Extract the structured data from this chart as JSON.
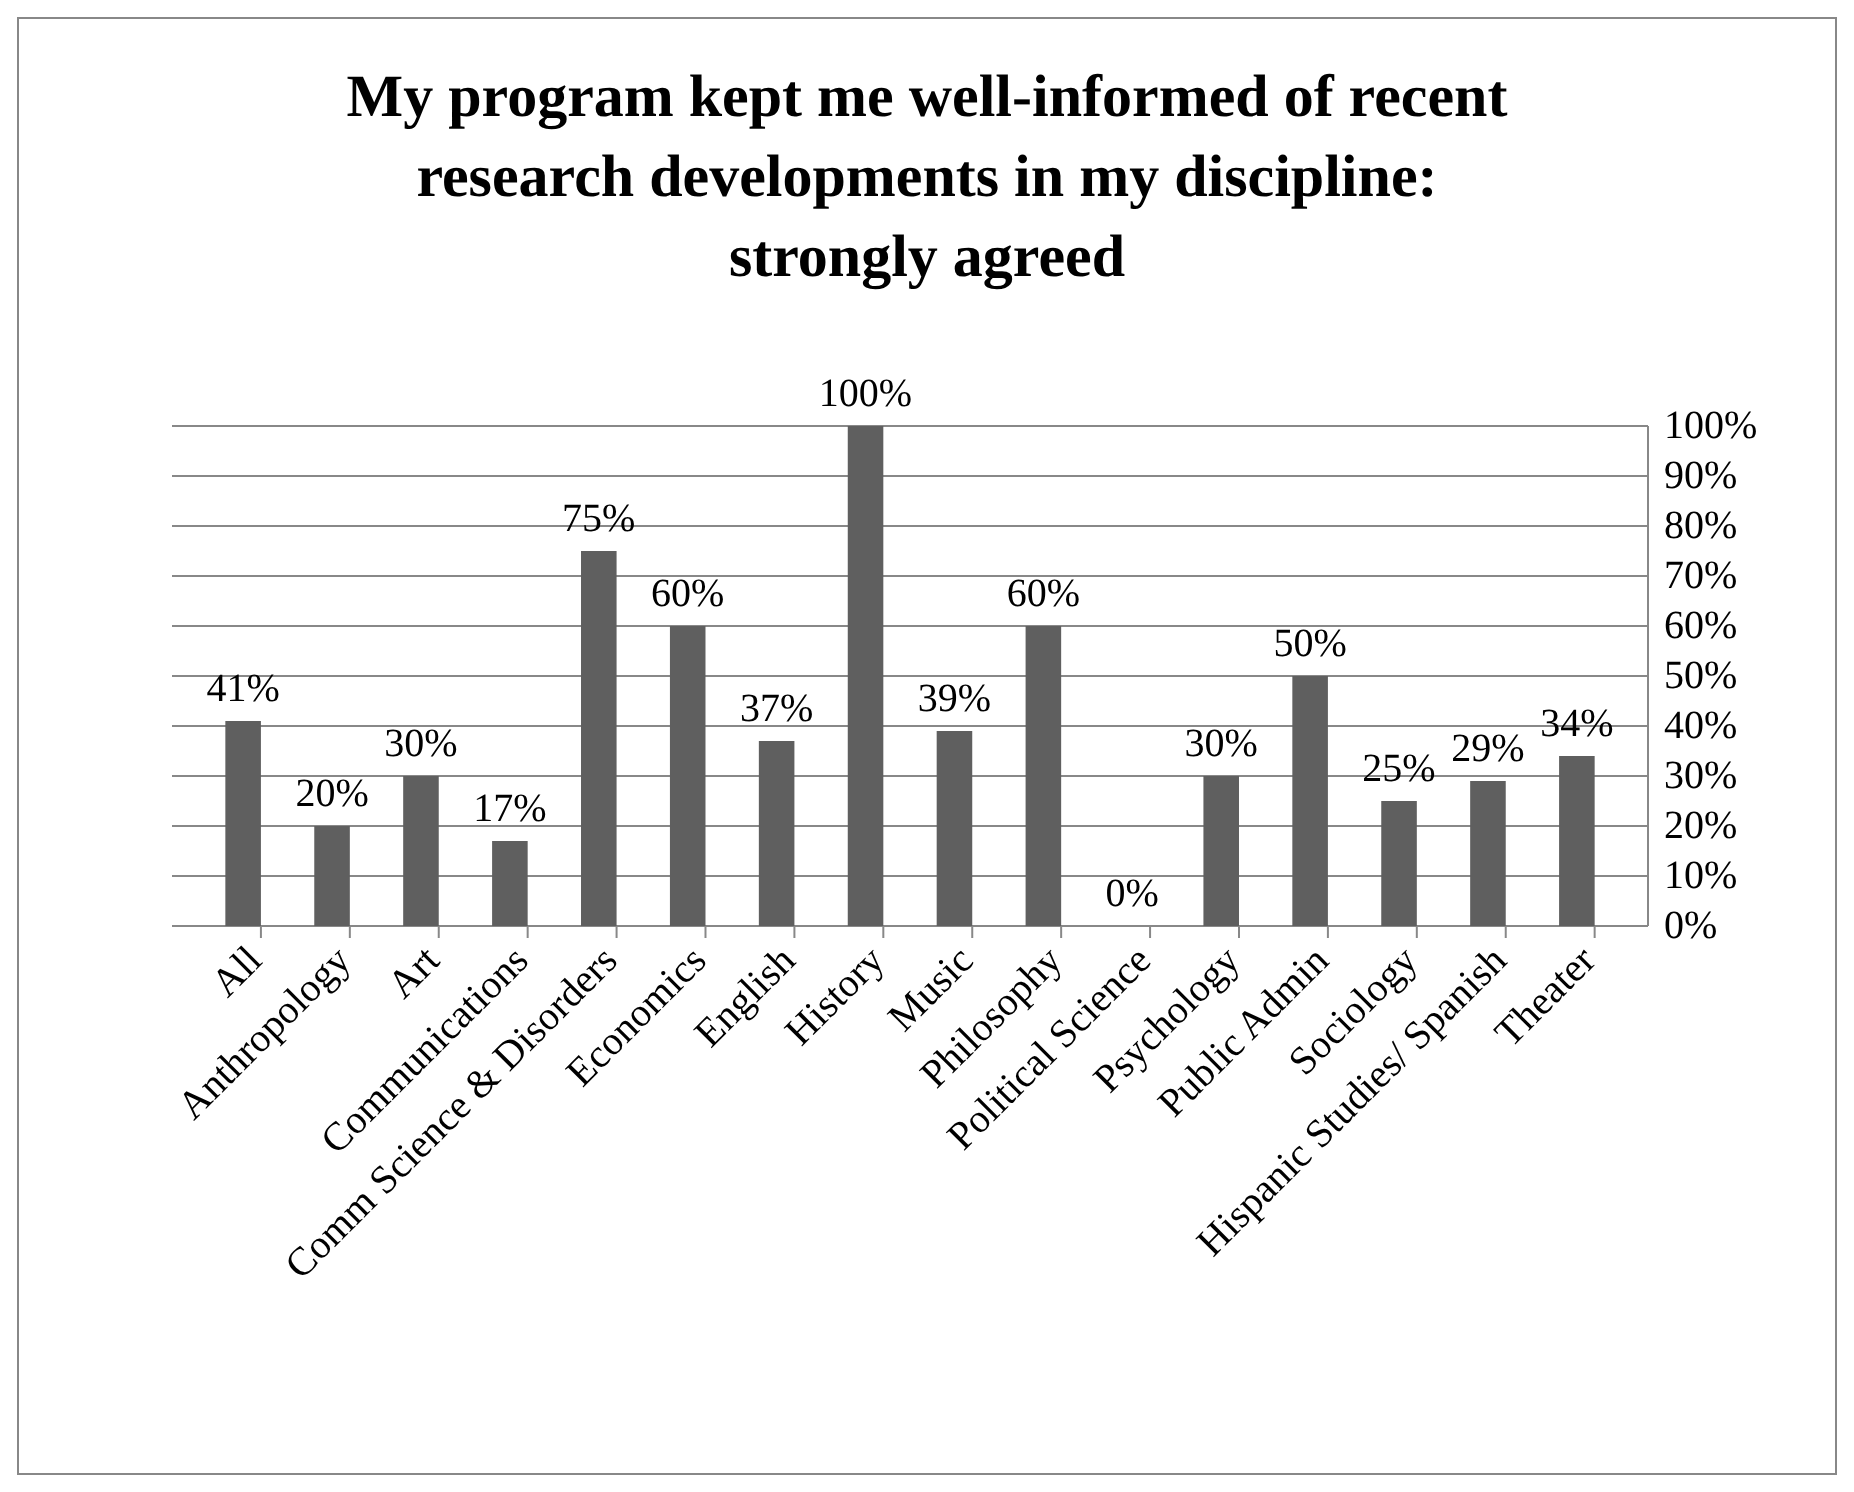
{
  "chart_data": {
    "type": "bar",
    "title": "My program kept me well-informed of recent research developments in my discipline: strongly agreed",
    "categories": [
      "All",
      "Anthropology",
      "Art",
      "Communications",
      "Comm Science & Disorders",
      "Economics",
      "English",
      "History",
      "Music",
      "Philosophy",
      "Political Science",
      "Psychology",
      "Public Admin",
      "Sociology",
      "Hispanic Studies/ Spanish",
      "Theater"
    ],
    "values": [
      41,
      20,
      30,
      17,
      75,
      60,
      37,
      100,
      39,
      60,
      0,
      30,
      50,
      25,
      29,
      34
    ],
    "color": "#5f5f5f",
    "ylim": [
      0,
      100
    ],
    "yticks": [
      {
        "value": 0,
        "label": "0%"
      },
      {
        "value": 10,
        "label": "10%"
      },
      {
        "value": 20,
        "label": "20%"
      },
      {
        "value": 30,
        "label": "30%"
      },
      {
        "value": 40,
        "label": "40%"
      },
      {
        "value": 50,
        "label": "50%"
      },
      {
        "value": 60,
        "label": "60%"
      },
      {
        "value": 70,
        "label": "70%"
      },
      {
        "value": 80,
        "label": "80%"
      },
      {
        "value": 90,
        "label": "90%"
      },
      {
        "value": 100,
        "label": "100%"
      }
    ],
    "value_labels": [
      "41%",
      "20%",
      "30%",
      "17%",
      "75%",
      "60%",
      "37%",
      "100%",
      "39%",
      "60%",
      "0%",
      "30%",
      "50%",
      "25%",
      "29%",
      "34%"
    ],
    "grid": "y"
  }
}
